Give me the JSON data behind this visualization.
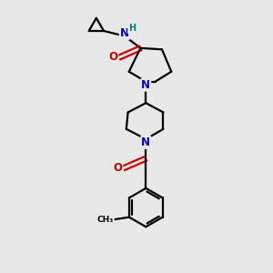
{
  "bg_color": "#e8e8e8",
  "bond_color": "#000000",
  "N_color": "#0000cc",
  "O_color": "#cc0000",
  "H_color": "#008080",
  "line_width": 1.6,
  "font_size_atom": 8.5,
  "fig_size": [
    3.0,
    3.0
  ],
  "dpi": 100,
  "xlim": [
    0,
    10
  ],
  "ylim": [
    0,
    10
  ]
}
